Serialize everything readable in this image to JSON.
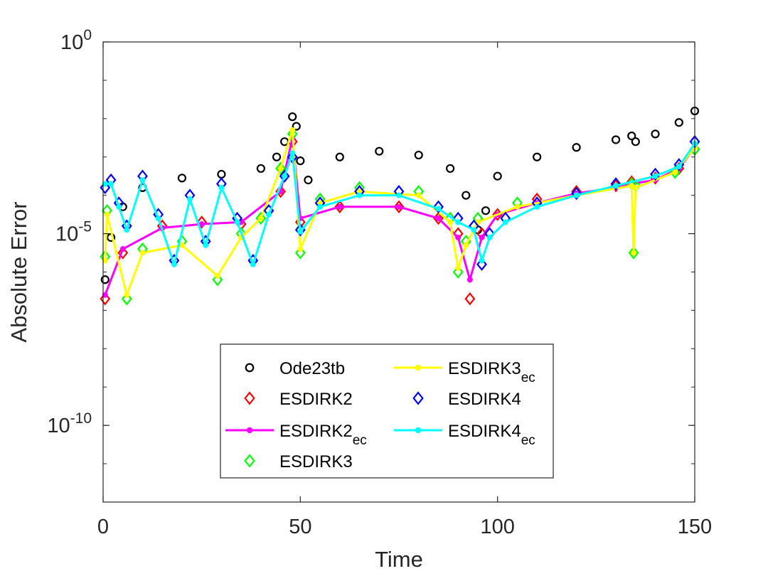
{
  "chart_data": {
    "type": "line",
    "title": "",
    "xlabel": "Time",
    "ylabel": "Absolute Error",
    "xlim": [
      0,
      150
    ],
    "ylog": true,
    "ylim_exp": [
      -12,
      0
    ],
    "xticks": [
      {
        "value": 0,
        "label": "0"
      },
      {
        "value": 50,
        "label": "50"
      },
      {
        "value": 100,
        "label": "100"
      },
      {
        "value": 150,
        "label": "150"
      }
    ],
    "yticks": [
      {
        "exp": 0,
        "base": "10",
        "sup": "0"
      },
      {
        "exp": -5,
        "base": "10",
        "sup": "-5"
      },
      {
        "exp": -10,
        "base": "10",
        "sup": "-10"
      }
    ],
    "legend": {
      "position": "lower-center",
      "entries": [
        {
          "series": "ode23tb",
          "base": "Ode23tb",
          "sub": ""
        },
        {
          "series": "esdirk2",
          "base": "ESDIRK2",
          "sub": ""
        },
        {
          "series": "esdirk2ec",
          "base": "ESDIRK2",
          "sub": "ec"
        },
        {
          "series": "esdirk3",
          "base": "ESDIRK3",
          "sub": ""
        },
        {
          "series": "esdirk3ec",
          "base": "ESDIRK3",
          "sub": "ec"
        },
        {
          "series": "esdirk4",
          "base": "ESDIRK4",
          "sub": ""
        },
        {
          "series": "esdirk4ec",
          "base": "ESDIRK4",
          "sub": "ec"
        }
      ]
    },
    "series": [
      {
        "id": "ode23tb",
        "name": "Ode23tb",
        "color": "#000000",
        "marker": "circle",
        "line": false,
        "points": [
          [
            0.5,
            -6.2
          ],
          [
            2,
            -5.1
          ],
          [
            5,
            -4.3
          ],
          [
            10,
            -3.8
          ],
          [
            20,
            -3.55
          ],
          [
            30,
            -3.45
          ],
          [
            40,
            -3.3
          ],
          [
            44,
            -3.0
          ],
          [
            46,
            -2.6
          ],
          [
            48,
            -1.95
          ],
          [
            49,
            -2.2
          ],
          [
            50,
            -3.1
          ],
          [
            52,
            -3.6
          ],
          [
            60,
            -3.0
          ],
          [
            70,
            -2.85
          ],
          [
            80,
            -2.95
          ],
          [
            88,
            -3.3
          ],
          [
            92,
            -4.0
          ],
          [
            95,
            -4.9
          ],
          [
            97,
            -4.4
          ],
          [
            100,
            -3.5
          ],
          [
            110,
            -3.0
          ],
          [
            120,
            -2.75
          ],
          [
            130,
            -2.55
          ],
          [
            134,
            -2.45
          ],
          [
            135,
            -2.6
          ],
          [
            140,
            -2.4
          ],
          [
            146,
            -2.1
          ],
          [
            150,
            -1.8
          ]
        ]
      },
      {
        "id": "esdirk2",
        "name": "ESDIRK2",
        "color": "#ff0000",
        "marker": "diamond",
        "line": false,
        "points": [
          [
            0.5,
            -6.7
          ],
          [
            5,
            -5.5
          ],
          [
            15,
            -4.8
          ],
          [
            25,
            -4.7
          ],
          [
            35,
            -4.75
          ],
          [
            45,
            -3.9
          ],
          [
            48,
            -2.6
          ],
          [
            50,
            -4.7
          ],
          [
            60,
            -4.3
          ],
          [
            75,
            -4.3
          ],
          [
            85,
            -4.6
          ],
          [
            90,
            -5.0
          ],
          [
            93,
            -6.7
          ],
          [
            96,
            -5.0
          ],
          [
            100,
            -4.5
          ],
          [
            110,
            -4.1
          ],
          [
            120,
            -3.9
          ],
          [
            130,
            -3.75
          ],
          [
            134,
            -3.65
          ],
          [
            140,
            -3.55
          ],
          [
            146,
            -3.3
          ],
          [
            150,
            -2.8
          ]
        ]
      },
      {
        "id": "esdirk2ec",
        "name": "ESDIRK2ec",
        "color": "#ff00ff",
        "marker": "dot",
        "line": true,
        "points": [
          [
            0.5,
            -6.6
          ],
          [
            5,
            -5.4
          ],
          [
            15,
            -4.85
          ],
          [
            25,
            -4.75
          ],
          [
            35,
            -4.7
          ],
          [
            45,
            -3.9
          ],
          [
            48,
            -2.5
          ],
          [
            50,
            -4.6
          ],
          [
            60,
            -4.3
          ],
          [
            75,
            -4.3
          ],
          [
            85,
            -4.6
          ],
          [
            90,
            -5.1
          ],
          [
            93,
            -6.2
          ],
          [
            96,
            -5.1
          ],
          [
            100,
            -4.5
          ],
          [
            110,
            -4.2
          ],
          [
            120,
            -3.95
          ],
          [
            130,
            -3.8
          ],
          [
            134,
            -3.7
          ],
          [
            140,
            -3.6
          ],
          [
            146,
            -3.3
          ],
          [
            150,
            -2.75
          ]
        ]
      },
      {
        "id": "esdirk3",
        "name": "ESDIRK3",
        "color": "#00ff00",
        "marker": "diamond",
        "line": false,
        "points": [
          [
            0.5,
            -5.6
          ],
          [
            1,
            -4.4
          ],
          [
            6,
            -6.7
          ],
          [
            10,
            -5.4
          ],
          [
            20,
            -5.2
          ],
          [
            29,
            -6.2
          ],
          [
            35,
            -5.0
          ],
          [
            40,
            -4.6
          ],
          [
            45,
            -3.3
          ],
          [
            48,
            -2.4
          ],
          [
            50,
            -5.5
          ],
          [
            55,
            -4.1
          ],
          [
            65,
            -3.8
          ],
          [
            80,
            -3.9
          ],
          [
            88,
            -4.6
          ],
          [
            90,
            -6.0
          ],
          [
            92,
            -5.2
          ],
          [
            95,
            -4.6
          ],
          [
            105,
            -4.2
          ],
          [
            120,
            -3.95
          ],
          [
            134,
            -3.7
          ],
          [
            134.5,
            -5.5
          ],
          [
            135,
            -3.75
          ],
          [
            145,
            -3.4
          ],
          [
            150,
            -2.8
          ]
        ]
      },
      {
        "id": "esdirk3ec",
        "name": "ESDIRK3ec",
        "color": "#ffff00",
        "marker": "dot",
        "line": true,
        "points": [
          [
            0.5,
            -5.7
          ],
          [
            1,
            -4.5
          ],
          [
            6,
            -6.6
          ],
          [
            10,
            -5.5
          ],
          [
            20,
            -5.3
          ],
          [
            29,
            -6.1
          ],
          [
            35,
            -5.1
          ],
          [
            40,
            -4.6
          ],
          [
            45,
            -3.3
          ],
          [
            48,
            -2.3
          ],
          [
            50,
            -5.4
          ],
          [
            55,
            -4.2
          ],
          [
            65,
            -3.9
          ],
          [
            80,
            -4.0
          ],
          [
            88,
            -4.7
          ],
          [
            90,
            -5.9
          ],
          [
            92,
            -5.3
          ],
          [
            95,
            -4.7
          ],
          [
            105,
            -4.3
          ],
          [
            120,
            -4.0
          ],
          [
            134,
            -3.75
          ],
          [
            134.5,
            -5.5
          ],
          [
            135,
            -3.8
          ],
          [
            145,
            -3.4
          ],
          [
            150,
            -2.75
          ]
        ]
      },
      {
        "id": "esdirk4",
        "name": "ESDIRK4",
        "color": "#0000ff",
        "marker": "diamond",
        "line": false,
        "points": [
          [
            0.5,
            -3.8
          ],
          [
            2,
            -3.6
          ],
          [
            4,
            -4.2
          ],
          [
            6,
            -4.8
          ],
          [
            10,
            -3.5
          ],
          [
            14,
            -4.5
          ],
          [
            18,
            -5.7
          ],
          [
            22,
            -4.0
          ],
          [
            26,
            -5.2
          ],
          [
            30,
            -3.7
          ],
          [
            34,
            -4.6
          ],
          [
            38,
            -5.7
          ],
          [
            42,
            -4.4
          ],
          [
            46,
            -3.5
          ],
          [
            48,
            -3.0
          ],
          [
            50,
            -4.9
          ],
          [
            55,
            -4.2
          ],
          [
            65,
            -3.9
          ],
          [
            75,
            -3.9
          ],
          [
            85,
            -4.3
          ],
          [
            90,
            -4.6
          ],
          [
            94,
            -4.8
          ],
          [
            96,
            -5.8
          ],
          [
            98,
            -5.0
          ],
          [
            102,
            -4.6
          ],
          [
            110,
            -4.2
          ],
          [
            120,
            -3.95
          ],
          [
            130,
            -3.7
          ],
          [
            140,
            -3.45
          ],
          [
            146,
            -3.2
          ],
          [
            150,
            -2.6
          ]
        ]
      },
      {
        "id": "esdirk4ec",
        "name": "ESDIRK4ec",
        "color": "#00ffff",
        "marker": "dot",
        "line": true,
        "points": [
          [
            0.5,
            -3.7
          ],
          [
            2,
            -3.7
          ],
          [
            4,
            -4.3
          ],
          [
            6,
            -4.9
          ],
          [
            10,
            -3.6
          ],
          [
            14,
            -4.6
          ],
          [
            18,
            -5.8
          ],
          [
            22,
            -4.1
          ],
          [
            26,
            -5.3
          ],
          [
            30,
            -3.8
          ],
          [
            34,
            -4.7
          ],
          [
            38,
            -5.8
          ],
          [
            42,
            -4.5
          ],
          [
            46,
            -3.5
          ],
          [
            48,
            -2.9
          ],
          [
            50,
            -4.95
          ],
          [
            55,
            -4.3
          ],
          [
            65,
            -4.0
          ],
          [
            75,
            -4.0
          ],
          [
            85,
            -4.35
          ],
          [
            90,
            -4.7
          ],
          [
            94,
            -4.9
          ],
          [
            96,
            -5.7
          ],
          [
            98,
            -5.1
          ],
          [
            102,
            -4.7
          ],
          [
            110,
            -4.3
          ],
          [
            120,
            -4.0
          ],
          [
            130,
            -3.75
          ],
          [
            140,
            -3.5
          ],
          [
            146,
            -3.25
          ],
          [
            150,
            -2.65
          ]
        ]
      }
    ]
  }
}
